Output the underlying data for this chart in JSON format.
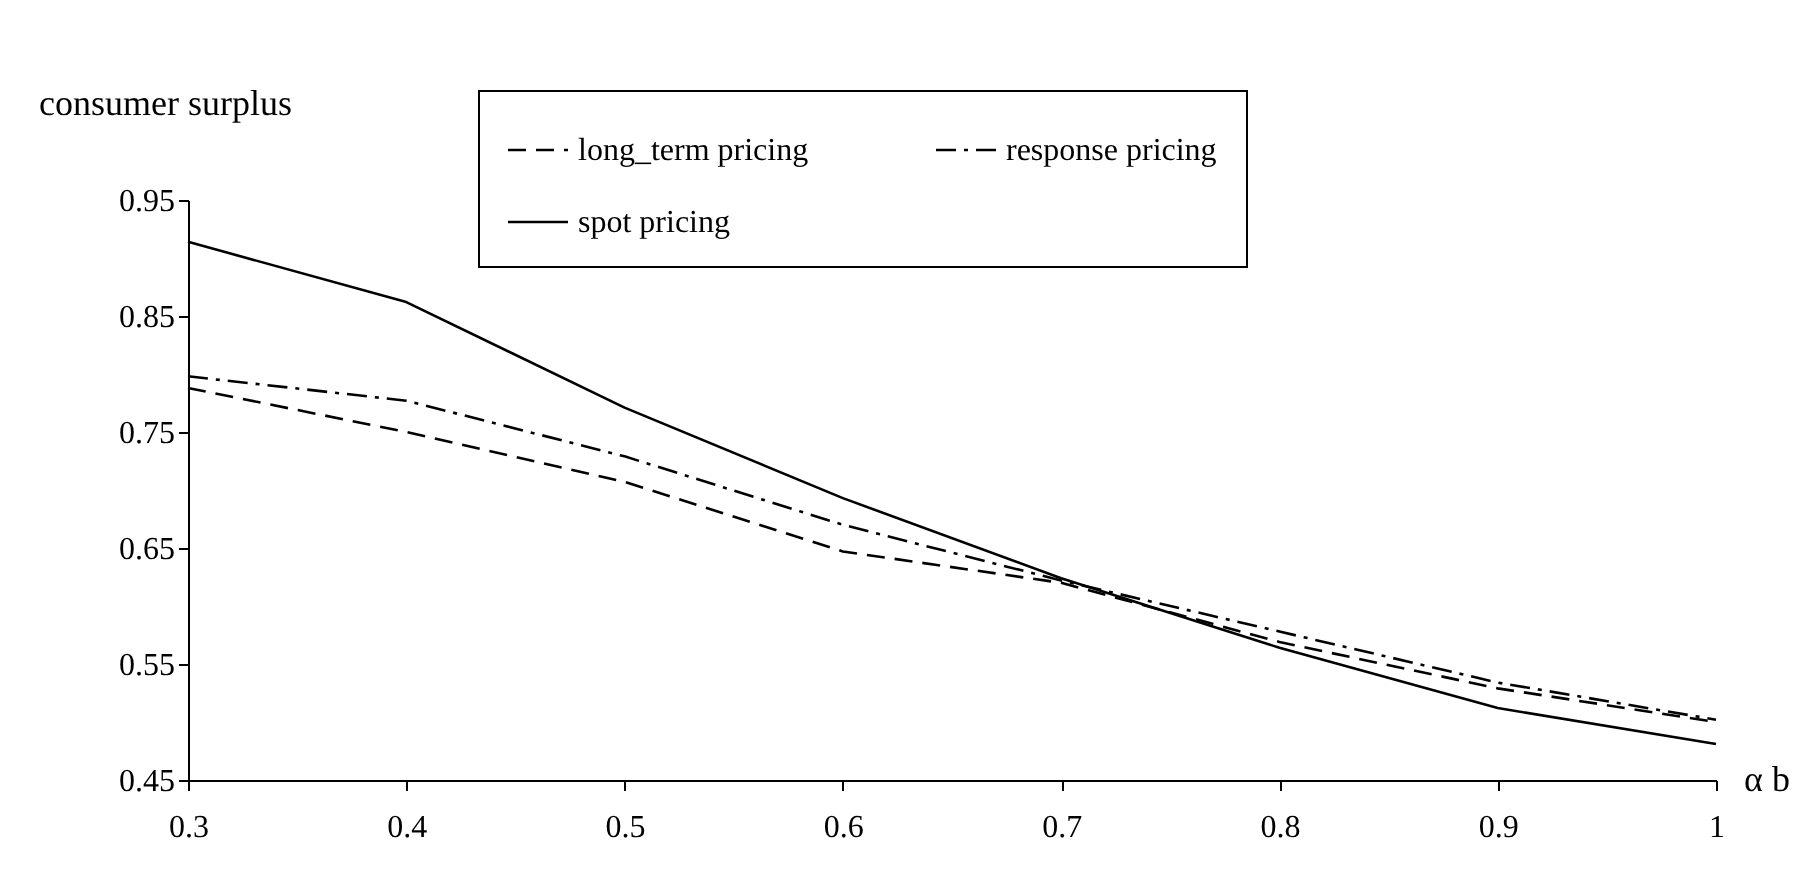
{
  "chart_data": {
    "type": "line",
    "ylabel": "consumer surplus",
    "xlabel": "α b",
    "x": [
      0.3,
      0.4,
      0.5,
      0.6,
      0.7,
      0.8,
      0.9,
      1
    ],
    "xlim": [
      0.3,
      1
    ],
    "xticks": [
      0.3,
      0.4,
      0.5,
      0.6,
      0.7,
      0.8,
      0.9,
      1
    ],
    "ylim": [
      0.45,
      0.95
    ],
    "yticks": [
      0.45,
      0.55,
      0.65,
      0.75,
      0.85,
      0.95
    ],
    "grid": false,
    "legend": "top",
    "marker": "none",
    "series": [
      {
        "name": "long_term pricing",
        "color": "#000000",
        "line_style": "dashed",
        "values": [
          0.788,
          0.75,
          0.707,
          0.647,
          0.62,
          0.569,
          0.529,
          0.5
        ]
      },
      {
        "name": "response pricing",
        "color": "#000000",
        "line_style": "dashdot",
        "values": [
          0.798,
          0.777,
          0.729,
          0.67,
          0.622,
          0.578,
          0.534,
          0.502
        ]
      },
      {
        "name": "spot pricing",
        "color": "#000000",
        "line_style": "solid",
        "values": [
          0.914,
          0.862,
          0.771,
          0.693,
          0.624,
          0.564,
          0.512,
          0.481
        ]
      }
    ]
  }
}
